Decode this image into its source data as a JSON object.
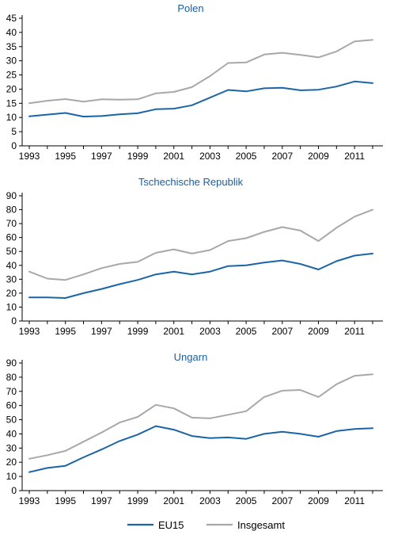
{
  "legend": {
    "eu15_label": "EU15",
    "total_label": "Insgesamt"
  },
  "colors": {
    "eu15": "#1b65a6",
    "total": "#a8a8a8",
    "title": "#1a5fa0"
  },
  "chart_data": [
    {
      "type": "line",
      "title": "Polen",
      "x": [
        1993,
        1994,
        1995,
        1996,
        1997,
        1998,
        1999,
        2000,
        2001,
        2002,
        2003,
        2004,
        2005,
        2006,
        2007,
        2008,
        2009,
        2010,
        2011,
        2012
      ],
      "x_tick_labels": [
        "1993",
        "1995",
        "1997",
        "1999",
        "2001",
        "2003",
        "2005",
        "2007",
        "2009",
        "2011"
      ],
      "ylim": [
        0,
        45
      ],
      "y_ticks": [
        0,
        5,
        10,
        15,
        20,
        25,
        30,
        35,
        40,
        45
      ],
      "series": [
        {
          "name": "EU15",
          "values": [
            10.4,
            11.0,
            11.6,
            10.3,
            10.5,
            11.1,
            11.5,
            12.9,
            13.1,
            14.3,
            17.0,
            19.7,
            19.2,
            20.3,
            20.5,
            19.6,
            19.8,
            20.9,
            22.7,
            22.1
          ]
        },
        {
          "name": "Insgesamt",
          "values": [
            15.0,
            15.9,
            16.5,
            15.6,
            16.4,
            16.3,
            16.4,
            18.5,
            19.0,
            20.7,
            24.6,
            29.2,
            29.4,
            32.2,
            32.8,
            32.1,
            31.2,
            33.3,
            36.8,
            37.4
          ]
        }
      ]
    },
    {
      "type": "line",
      "title": "Tschechische Republik",
      "x": [
        1993,
        1994,
        1995,
        1996,
        1997,
        1998,
        1999,
        2000,
        2001,
        2002,
        2003,
        2004,
        2005,
        2006,
        2007,
        2008,
        2009,
        2010,
        2011,
        2012
      ],
      "x_tick_labels": [
        "1993",
        "1995",
        "1997",
        "1999",
        "2001",
        "2003",
        "2005",
        "2007",
        "2009",
        "2011"
      ],
      "ylim": [
        0,
        90
      ],
      "y_ticks": [
        0,
        10,
        20,
        30,
        40,
        50,
        60,
        70,
        80,
        90
      ],
      "series": [
        {
          "name": "EU15",
          "values": [
            17.0,
            17.0,
            16.5,
            20.0,
            23.0,
            26.5,
            29.5,
            33.5,
            35.5,
            33.5,
            35.5,
            39.5,
            40.0,
            42.0,
            43.5,
            41.0,
            37.0,
            43.0,
            47.0,
            48.5
          ]
        },
        {
          "name": "Insgesamt",
          "values": [
            35.5,
            30.5,
            29.5,
            33.5,
            38.0,
            41.0,
            42.5,
            49.0,
            51.5,
            48.5,
            51.0,
            57.5,
            59.5,
            64.0,
            67.5,
            65.0,
            57.5,
            67.0,
            75.0,
            80.0
          ]
        }
      ]
    },
    {
      "type": "line",
      "title": "Ungarn",
      "x": [
        1993,
        1994,
        1995,
        1996,
        1997,
        1998,
        1999,
        2000,
        2001,
        2002,
        2003,
        2004,
        2005,
        2006,
        2007,
        2008,
        2009,
        2010,
        2011,
        2012
      ],
      "x_tick_labels": [
        "1993",
        "1995",
        "1997",
        "1999",
        "2001",
        "2003",
        "2005",
        "2007",
        "2009",
        "2011"
      ],
      "ylim": [
        0,
        90
      ],
      "y_ticks": [
        0,
        10,
        20,
        30,
        40,
        50,
        60,
        70,
        80,
        90
      ],
      "series": [
        {
          "name": "EU15",
          "values": [
            13.0,
            16.0,
            17.5,
            23.5,
            29.0,
            35.0,
            39.5,
            45.5,
            43.0,
            38.5,
            37.0,
            37.5,
            36.5,
            40.0,
            41.5,
            40.0,
            38.0,
            42.0,
            43.5,
            44.0
          ]
        },
        {
          "name": "Insgesamt",
          "values": [
            22.5,
            25.0,
            28.0,
            34.5,
            41.0,
            48.0,
            52.0,
            60.5,
            58.0,
            51.5,
            51.0,
            53.5,
            56.0,
            66.0,
            70.5,
            71.0,
            66.0,
            75.0,
            81.0,
            82.0
          ]
        }
      ]
    }
  ]
}
